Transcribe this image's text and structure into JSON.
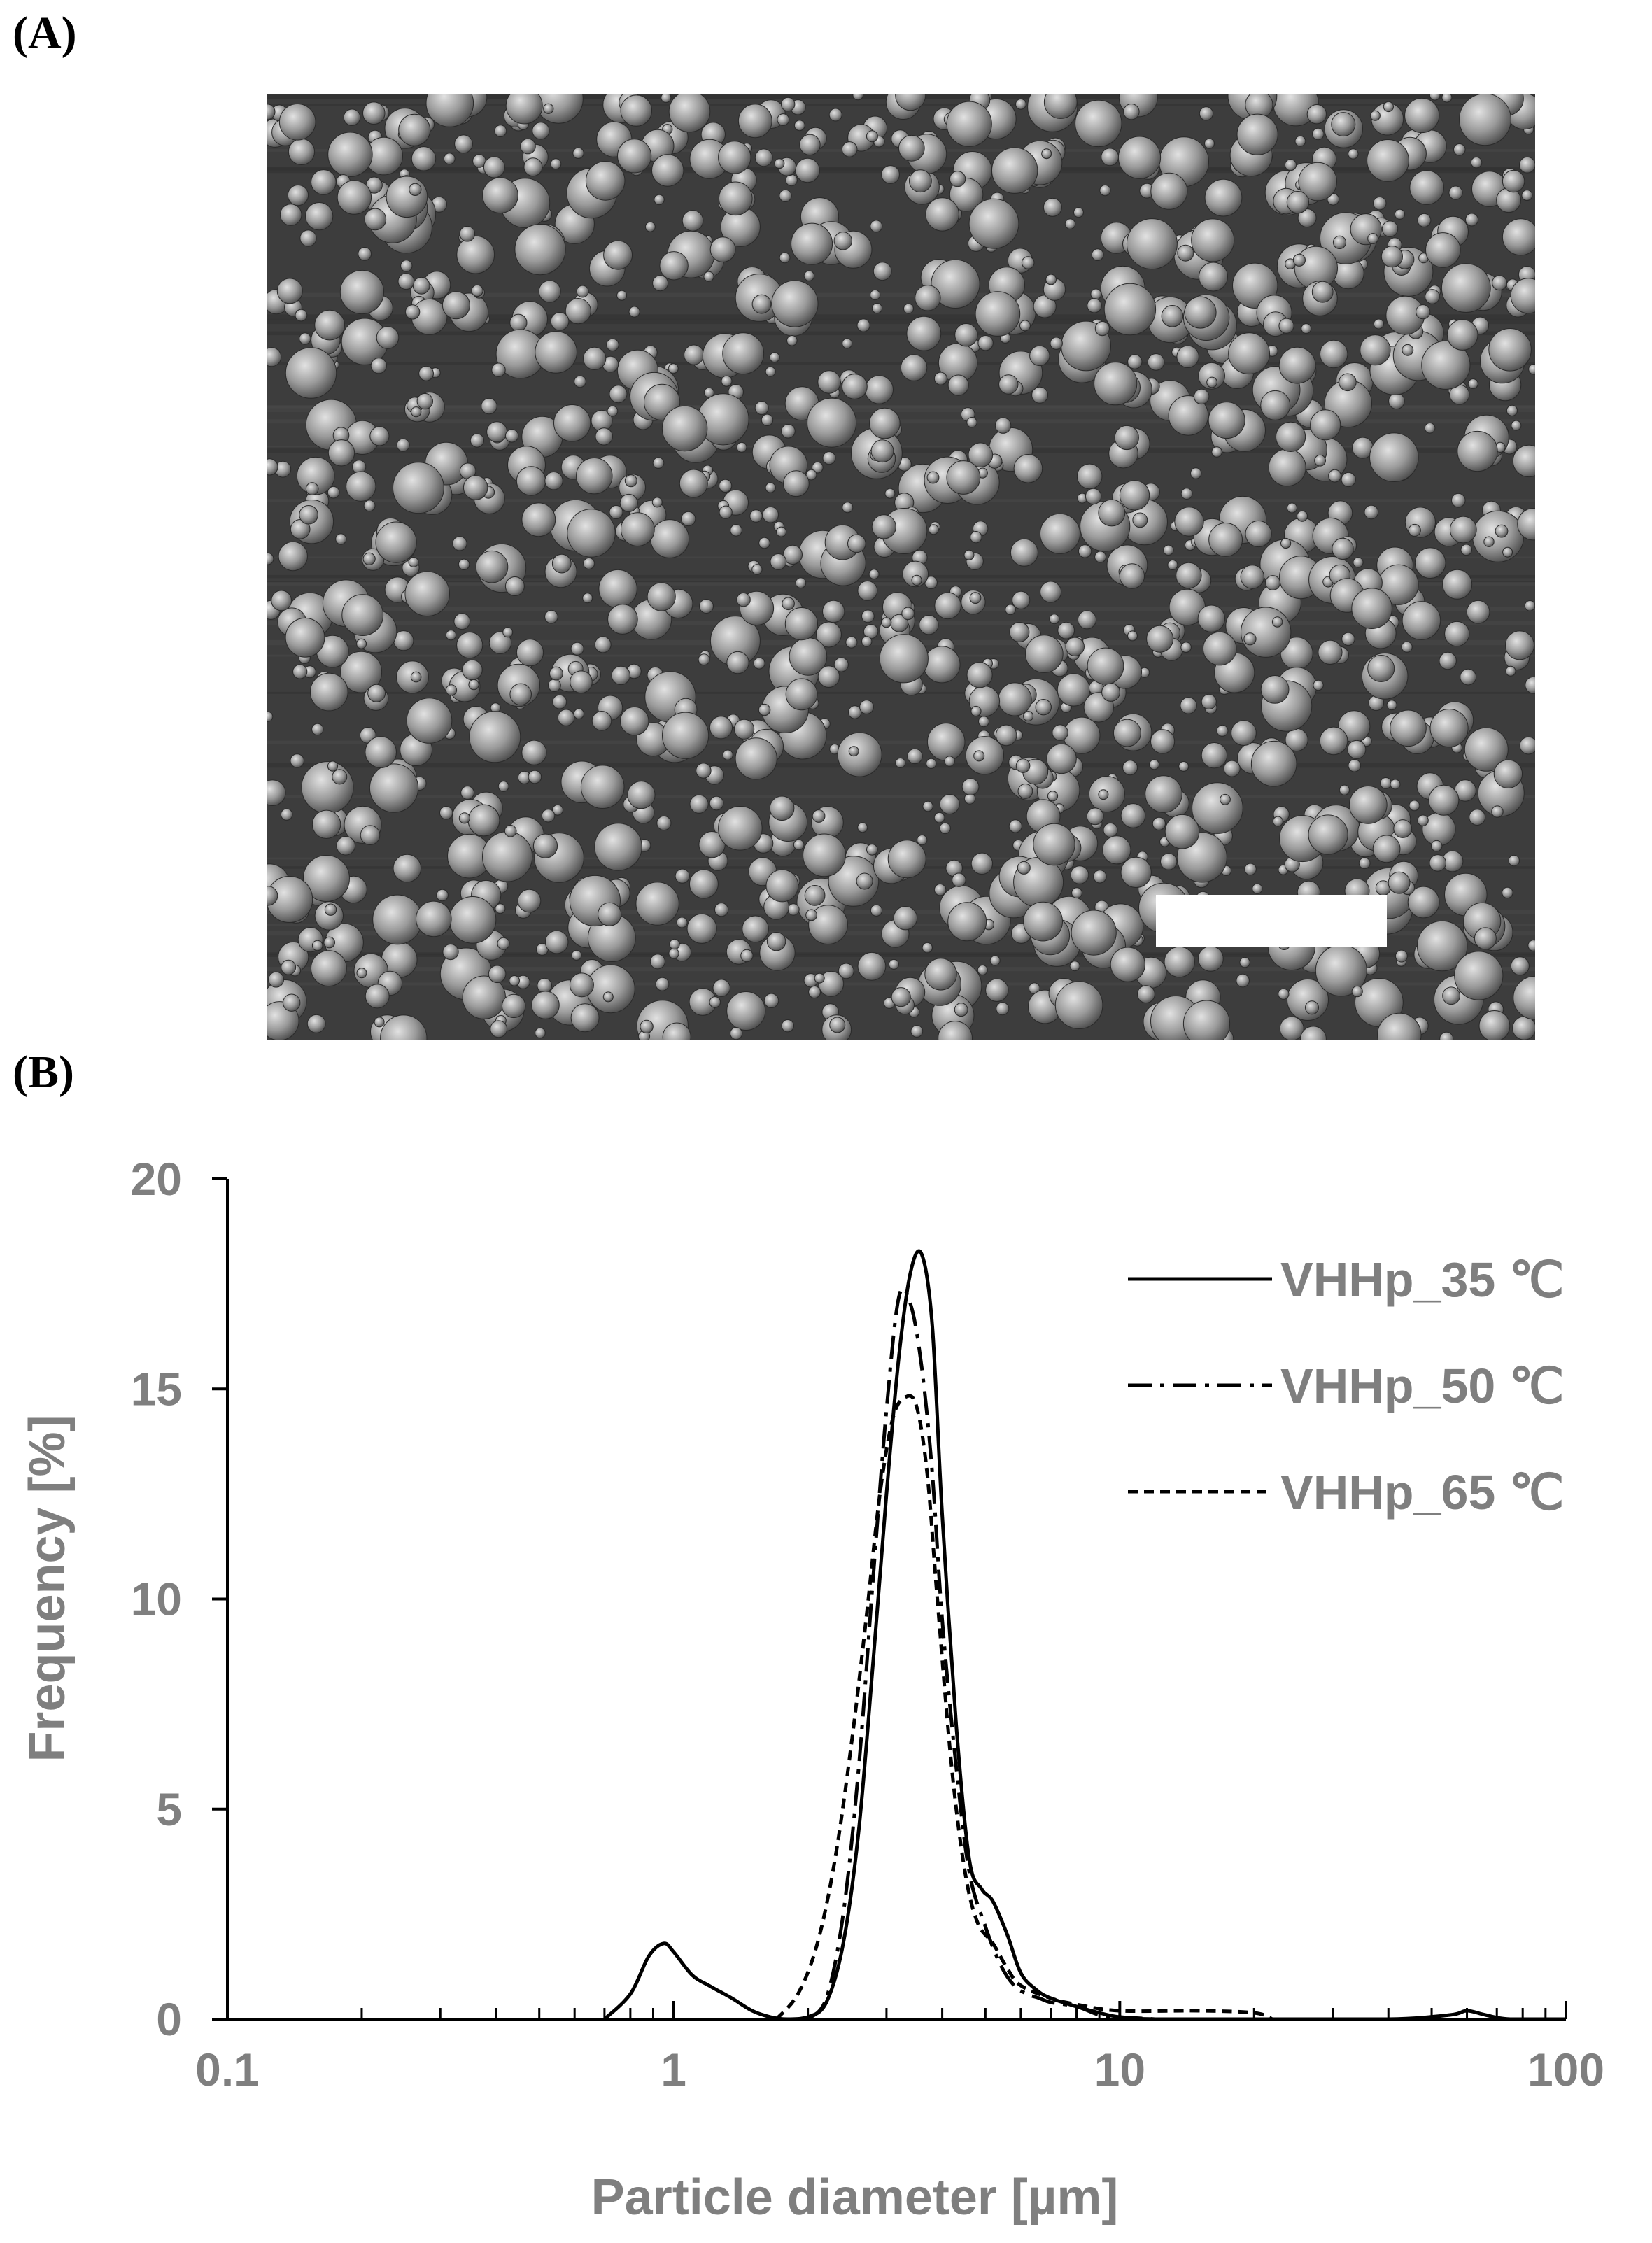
{
  "panels": {
    "a_label": "(A)",
    "b_label": "(B)"
  },
  "micrograph": {
    "scale_bar_label": ""
  },
  "chart_data": {
    "type": "line",
    "xlabel": "Particle diameter [µm]",
    "ylabel": "Frequency [%]",
    "xscale": "log",
    "xlim": [
      0.1,
      100
    ],
    "ylim": [
      0,
      20
    ],
    "xticks": [
      "0.1",
      "1",
      "10",
      "100"
    ],
    "yticks": [
      "0",
      "5",
      "10",
      "15",
      "20"
    ],
    "grid": false,
    "legend_position": "top-right",
    "series": [
      {
        "name": "VHHp_35 ℃",
        "style": "solid",
        "x": [
          0.7,
          0.8,
          0.88,
          0.95,
          1.0,
          1.1,
          1.2,
          1.35,
          1.5,
          1.65,
          1.8,
          2.0,
          2.2,
          2.4,
          2.6,
          2.8,
          3.0,
          3.2,
          3.4,
          3.6,
          3.8,
          4.0,
          4.3,
          4.6,
          4.9,
          5.2,
          5.6,
          6.0,
          6.5,
          7.0,
          8.0,
          9.0,
          10.0,
          12.0,
          20.0,
          40.0,
          55.0,
          60.0,
          66.0,
          75.0,
          100.0
        ],
        "y": [
          0,
          0.6,
          1.5,
          1.8,
          1.6,
          1.05,
          0.8,
          0.5,
          0.2,
          0.05,
          0,
          0.05,
          0.4,
          1.8,
          4.5,
          8.5,
          12.5,
          15.8,
          17.8,
          18.2,
          16.5,
          12.0,
          7.0,
          3.8,
          3.1,
          2.8,
          2.0,
          1.1,
          0.7,
          0.5,
          0.3,
          0.15,
          0.05,
          0,
          0,
          0,
          0.1,
          0.2,
          0.1,
          0,
          0
        ]
      },
      {
        "name": "VHHp_50 ℃",
        "style": "dash-dot",
        "x": [
          2.0,
          2.2,
          2.4,
          2.6,
          2.8,
          3.0,
          3.2,
          3.4,
          3.6,
          3.8,
          4.0,
          4.3,
          4.6,
          5.0,
          5.4,
          5.8,
          6.2,
          6.6,
          7.0,
          8.0,
          9.0,
          10.0,
          12.0
        ],
        "y": [
          0,
          0.5,
          2.5,
          6.0,
          10.5,
          14.5,
          17.2,
          17.0,
          15.5,
          13.0,
          9.5,
          6.0,
          3.5,
          2.2,
          1.3,
          0.8,
          0.6,
          0.5,
          0.4,
          0.3,
          0.1,
          0.05,
          0
        ]
      },
      {
        "name": "VHHp_65 ℃",
        "style": "dashed",
        "x": [
          1.7,
          1.9,
          2.1,
          2.3,
          2.5,
          2.7,
          2.9,
          3.1,
          3.3,
          3.5,
          3.7,
          3.9,
          4.2,
          4.5,
          4.8,
          5.2,
          5.6,
          6.0,
          7.0,
          8.0,
          10.0,
          15.0,
          20.0,
          22.0
        ],
        "y": [
          0,
          0.6,
          1.8,
          3.8,
          6.5,
          9.5,
          12.5,
          14.3,
          14.8,
          14.6,
          13.0,
          10.0,
          6.0,
          3.5,
          2.3,
          1.8,
          1.2,
          0.8,
          0.5,
          0.35,
          0.2,
          0.2,
          0.15,
          0
        ]
      }
    ]
  }
}
